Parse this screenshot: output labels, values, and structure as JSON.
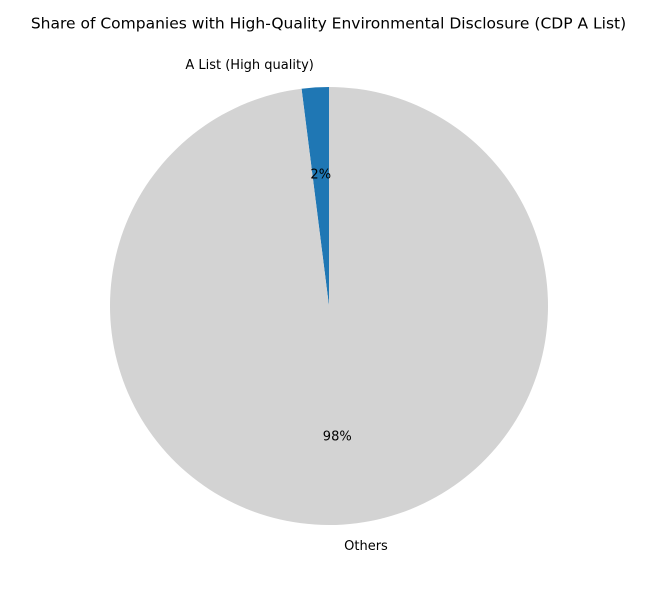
{
  "chart_data": {
    "type": "pie",
    "title": "Share of Companies with High-Quality Environmental Disclosure (CDP A List)",
    "slices": [
      {
        "label": "A List (High quality)",
        "value": 2,
        "percent_label": "2%",
        "color": "#1f77b4"
      },
      {
        "label": "Others",
        "value": 98,
        "percent_label": "98%",
        "color": "#d3d3d3"
      }
    ],
    "start_angle_deg": 90,
    "direction": "counterclockwise",
    "legend": "none"
  }
}
